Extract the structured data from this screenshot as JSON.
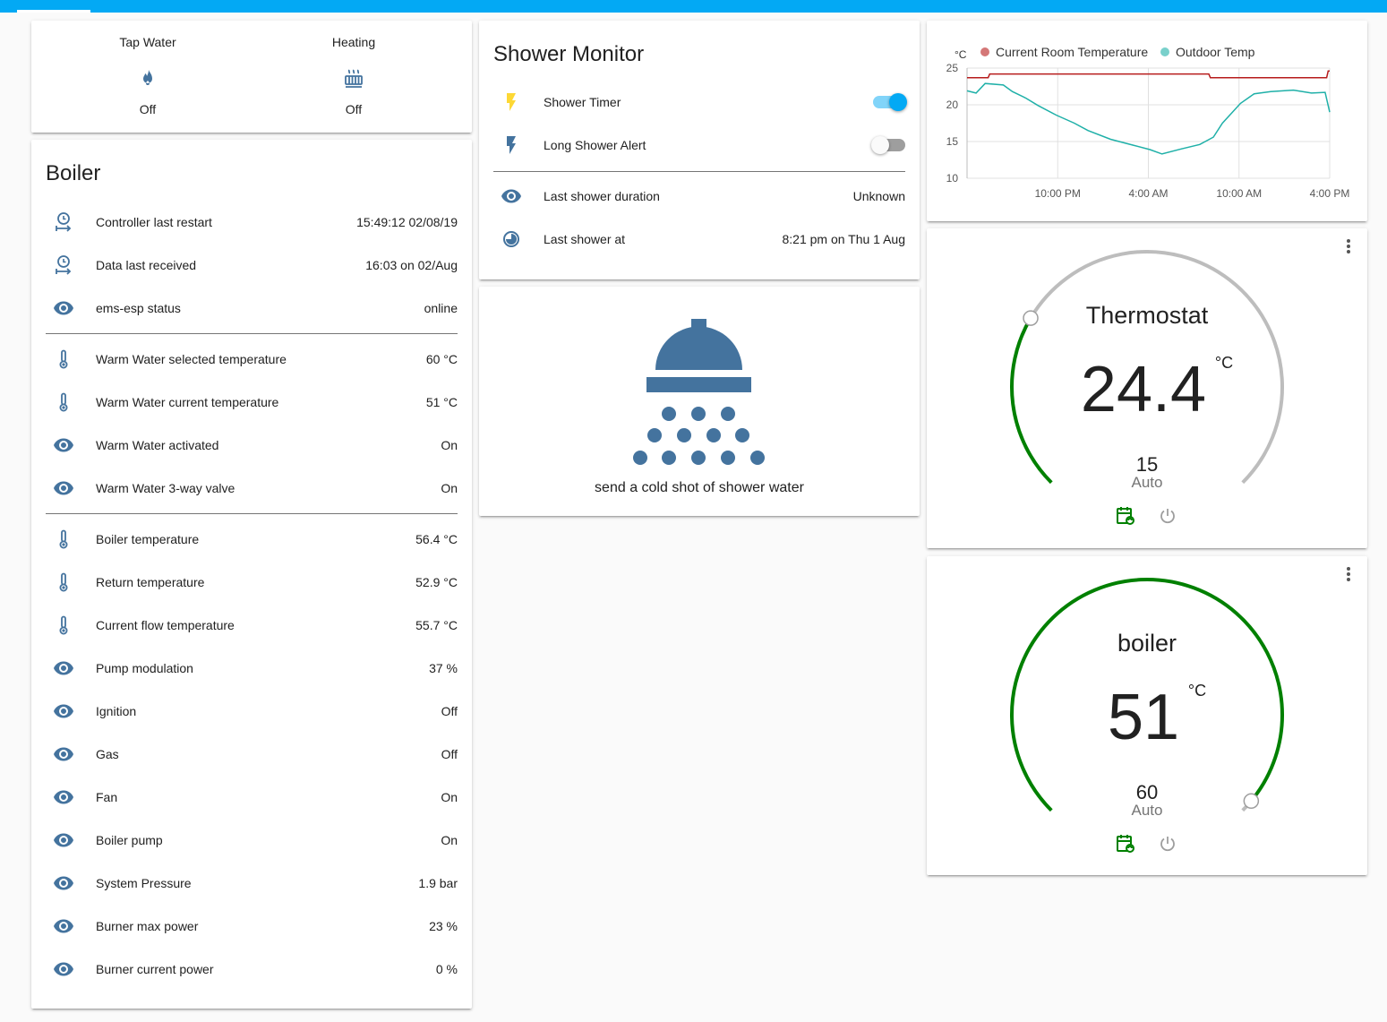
{
  "glance": {
    "items": [
      {
        "name": "Tap Water",
        "state": "Off"
      },
      {
        "name": "Heating",
        "state": "Off"
      }
    ]
  },
  "boiler": {
    "title": "Boiler",
    "groups": [
      [
        {
          "name": "Controller last restart",
          "value": "15:49:12 02/08/19"
        },
        {
          "name": "Data last received",
          "value": "16:03 on 02/Aug"
        },
        {
          "name": "ems-esp status",
          "value": "online"
        }
      ],
      [
        {
          "name": "Warm Water selected temperature",
          "value": "60 °C"
        },
        {
          "name": "Warm Water current temperature",
          "value": "51 °C"
        },
        {
          "name": "Warm Water activated",
          "value": "On"
        },
        {
          "name": "Warm Water 3-way valve",
          "value": "On"
        }
      ],
      [
        {
          "name": "Boiler temperature",
          "value": "56.4 °C"
        },
        {
          "name": "Return temperature",
          "value": "52.9 °C"
        },
        {
          "name": "Current flow temperature",
          "value": "55.7 °C"
        },
        {
          "name": "Pump modulation",
          "value": "37 %"
        },
        {
          "name": "Ignition",
          "value": "Off"
        },
        {
          "name": "Gas",
          "value": "Off"
        },
        {
          "name": "Fan",
          "value": "On"
        },
        {
          "name": "Boiler pump",
          "value": "On"
        },
        {
          "name": "System Pressure",
          "value": "1.9 bar"
        },
        {
          "name": "Burner max power",
          "value": "23 %"
        },
        {
          "name": "Burner current power",
          "value": "0 %"
        }
      ]
    ]
  },
  "shower_monitor": {
    "title": "Shower Monitor",
    "toggles": [
      {
        "name": "Shower Timer",
        "on": true
      },
      {
        "name": "Long Shower Alert",
        "on": false
      }
    ],
    "rows": [
      {
        "name": "Last shower duration",
        "value": "Unknown"
      },
      {
        "name": "Last shower at",
        "value": "8:21 pm on Thu 1 Aug"
      }
    ]
  },
  "shower_button": {
    "label": "send a cold shot of shower water"
  },
  "chart_data": {
    "type": "line",
    "y_unit": "°C",
    "xlim": [
      16,
      40
    ],
    "ylim": [
      10,
      25
    ],
    "xticks": [
      {
        "value": 22,
        "label": "10:00 PM"
      },
      {
        "value": 28,
        "label": "4:00 AM"
      },
      {
        "value": 34,
        "label": "10:00 AM"
      },
      {
        "value": 40,
        "label": "4:00 PM"
      }
    ],
    "yticks": [
      10,
      15,
      20,
      25
    ],
    "grid": true,
    "legend": "top",
    "series": [
      {
        "name": "Current Room Temperature",
        "color": "#b71c1c",
        "x": [
          16,
          17.4,
          17.5,
          32,
          32.1,
          39.8,
          39.9,
          40
        ],
        "values": [
          23.7,
          23.7,
          24.2,
          24.2,
          23.7,
          23.7,
          24.6,
          24.6
        ]
      },
      {
        "name": "Outdoor Temp",
        "color": "#1fb0a8",
        "x": [
          16,
          16.6,
          17.2,
          18.4,
          19.0,
          19.9,
          20.7,
          21.9,
          23.1,
          24.0,
          25.5,
          27.0,
          28.1,
          28.9,
          30.2,
          31.4,
          32.3,
          32.9,
          34.1,
          35.0,
          36.1,
          37.6,
          38.8,
          39.7,
          40
        ],
        "values": [
          21.9,
          21.6,
          22.9,
          22.7,
          21.8,
          20.9,
          19.9,
          18.6,
          17.5,
          16.5,
          15.3,
          14.5,
          13.9,
          13.3,
          14.0,
          14.6,
          15.6,
          17.5,
          20.2,
          21.5,
          21.8,
          22.0,
          21.6,
          21.7,
          19.0
        ]
      }
    ]
  },
  "thermostats": [
    {
      "name": "Thermostat",
      "current": 24.4,
      "unit": "°C",
      "target": 15,
      "mode": "Auto"
    },
    {
      "name": "boiler",
      "current": 51,
      "unit": "°C",
      "target": 60,
      "mode": "Auto"
    }
  ]
}
